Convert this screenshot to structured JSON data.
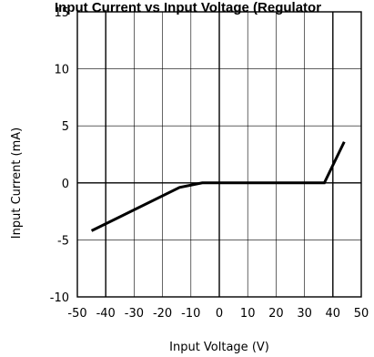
{
  "chart_data": {
    "type": "line",
    "title": "Input Current vs Input Voltage (Regulator",
    "xlabel": "Input Voltage (V)",
    "ylabel": "Input Current (mA)",
    "xlim": [
      -50,
      50
    ],
    "ylim": [
      -10,
      15
    ],
    "xticks": [
      "-50",
      "-40",
      "-30",
      "-20",
      "-10",
      "0",
      "10",
      "20",
      "30",
      "40",
      "50"
    ],
    "yticks": [
      "15",
      "10",
      "5",
      "0",
      "-5",
      "-10"
    ],
    "grid": true,
    "series": [
      {
        "x": [
          -45,
          -14,
          -6,
          37,
          44
        ],
        "y": [
          -4.2,
          -0.4,
          0,
          0,
          3.6
        ]
      }
    ]
  }
}
